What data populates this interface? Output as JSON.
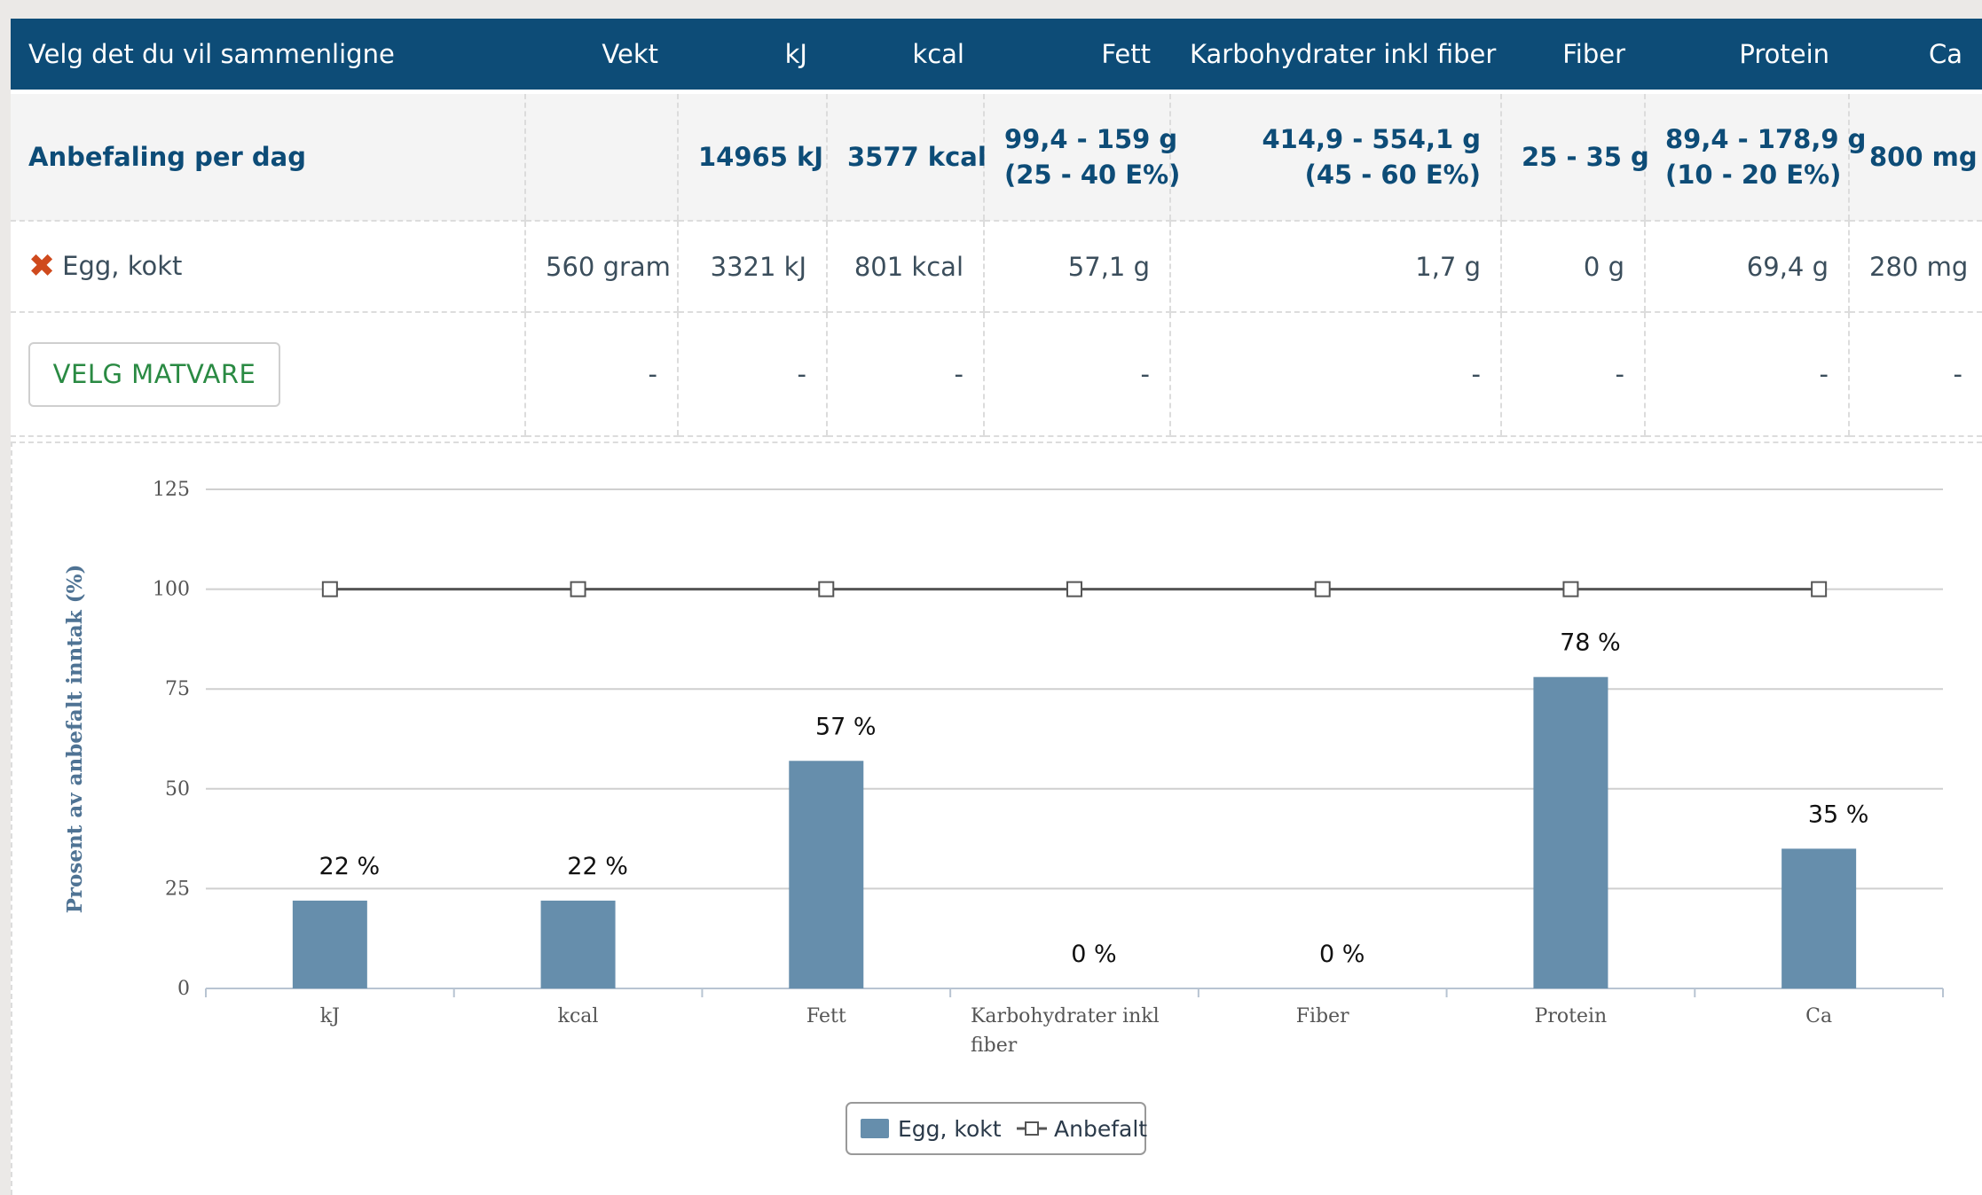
{
  "table": {
    "columns": [
      "Velg det du vil sammenligne",
      "Vekt",
      "kJ",
      "kcal",
      "Fett",
      "Karbohydrater inkl fiber",
      "Fiber",
      "Protein",
      "Ca"
    ],
    "recommendation": {
      "label": "Anbefaling per dag",
      "vekt": "",
      "kj": "14965 kJ",
      "kcal": "3577 kcal",
      "fett": [
        "99,4 - 159 g",
        "(25 - 40 E%)"
      ],
      "karbo": [
        "414,9 - 554,1 g",
        "(45 - 60 E%)"
      ],
      "fiber": "25 - 35 g",
      "protein": [
        "89,4 - 178,9 g",
        "(10 - 20 E%)"
      ],
      "ca": "800 mg"
    },
    "food": {
      "name": "Egg, kokt",
      "remove_icon": "x-icon",
      "vekt": "560 gram",
      "kj": "3321 kJ",
      "kcal": "801 kcal",
      "fett": "57,1 g",
      "karbo": "1,7 g",
      "fiber": "0 g",
      "protein": "69,4 g",
      "ca": "280 mg"
    },
    "pick_row": {
      "button_label": "VELG MATVARE",
      "placeholder": "-"
    }
  },
  "colors": {
    "header_bg": "#0d4c77",
    "bar": "#668eac",
    "remove": "#cf4a1d",
    "button_text": "#2a8a43"
  },
  "chart_data": {
    "type": "bar",
    "categories": [
      "kJ",
      "kcal",
      "Fett",
      "Karbohydrater inkl fiber",
      "Fiber",
      "Protein",
      "Ca"
    ],
    "series": [
      {
        "name": "Egg, kokt",
        "type": "bar",
        "values": [
          22,
          22,
          57,
          0,
          0,
          78,
          35
        ],
        "labels": [
          "22 %",
          "22 %",
          "57 %",
          "0 %",
          "0 %",
          "78 %",
          "35 %"
        ]
      },
      {
        "name": "Anbefalt",
        "type": "line",
        "values": [
          100,
          100,
          100,
          100,
          100,
          100,
          100
        ]
      }
    ],
    "ylabel": "Prosent av anbefalt inntak (%)",
    "xlabel": "",
    "ylim": [
      0,
      125
    ],
    "yticks": [
      0,
      25,
      50,
      75,
      100,
      125
    ],
    "grid": true,
    "legend": "bottom-center"
  }
}
